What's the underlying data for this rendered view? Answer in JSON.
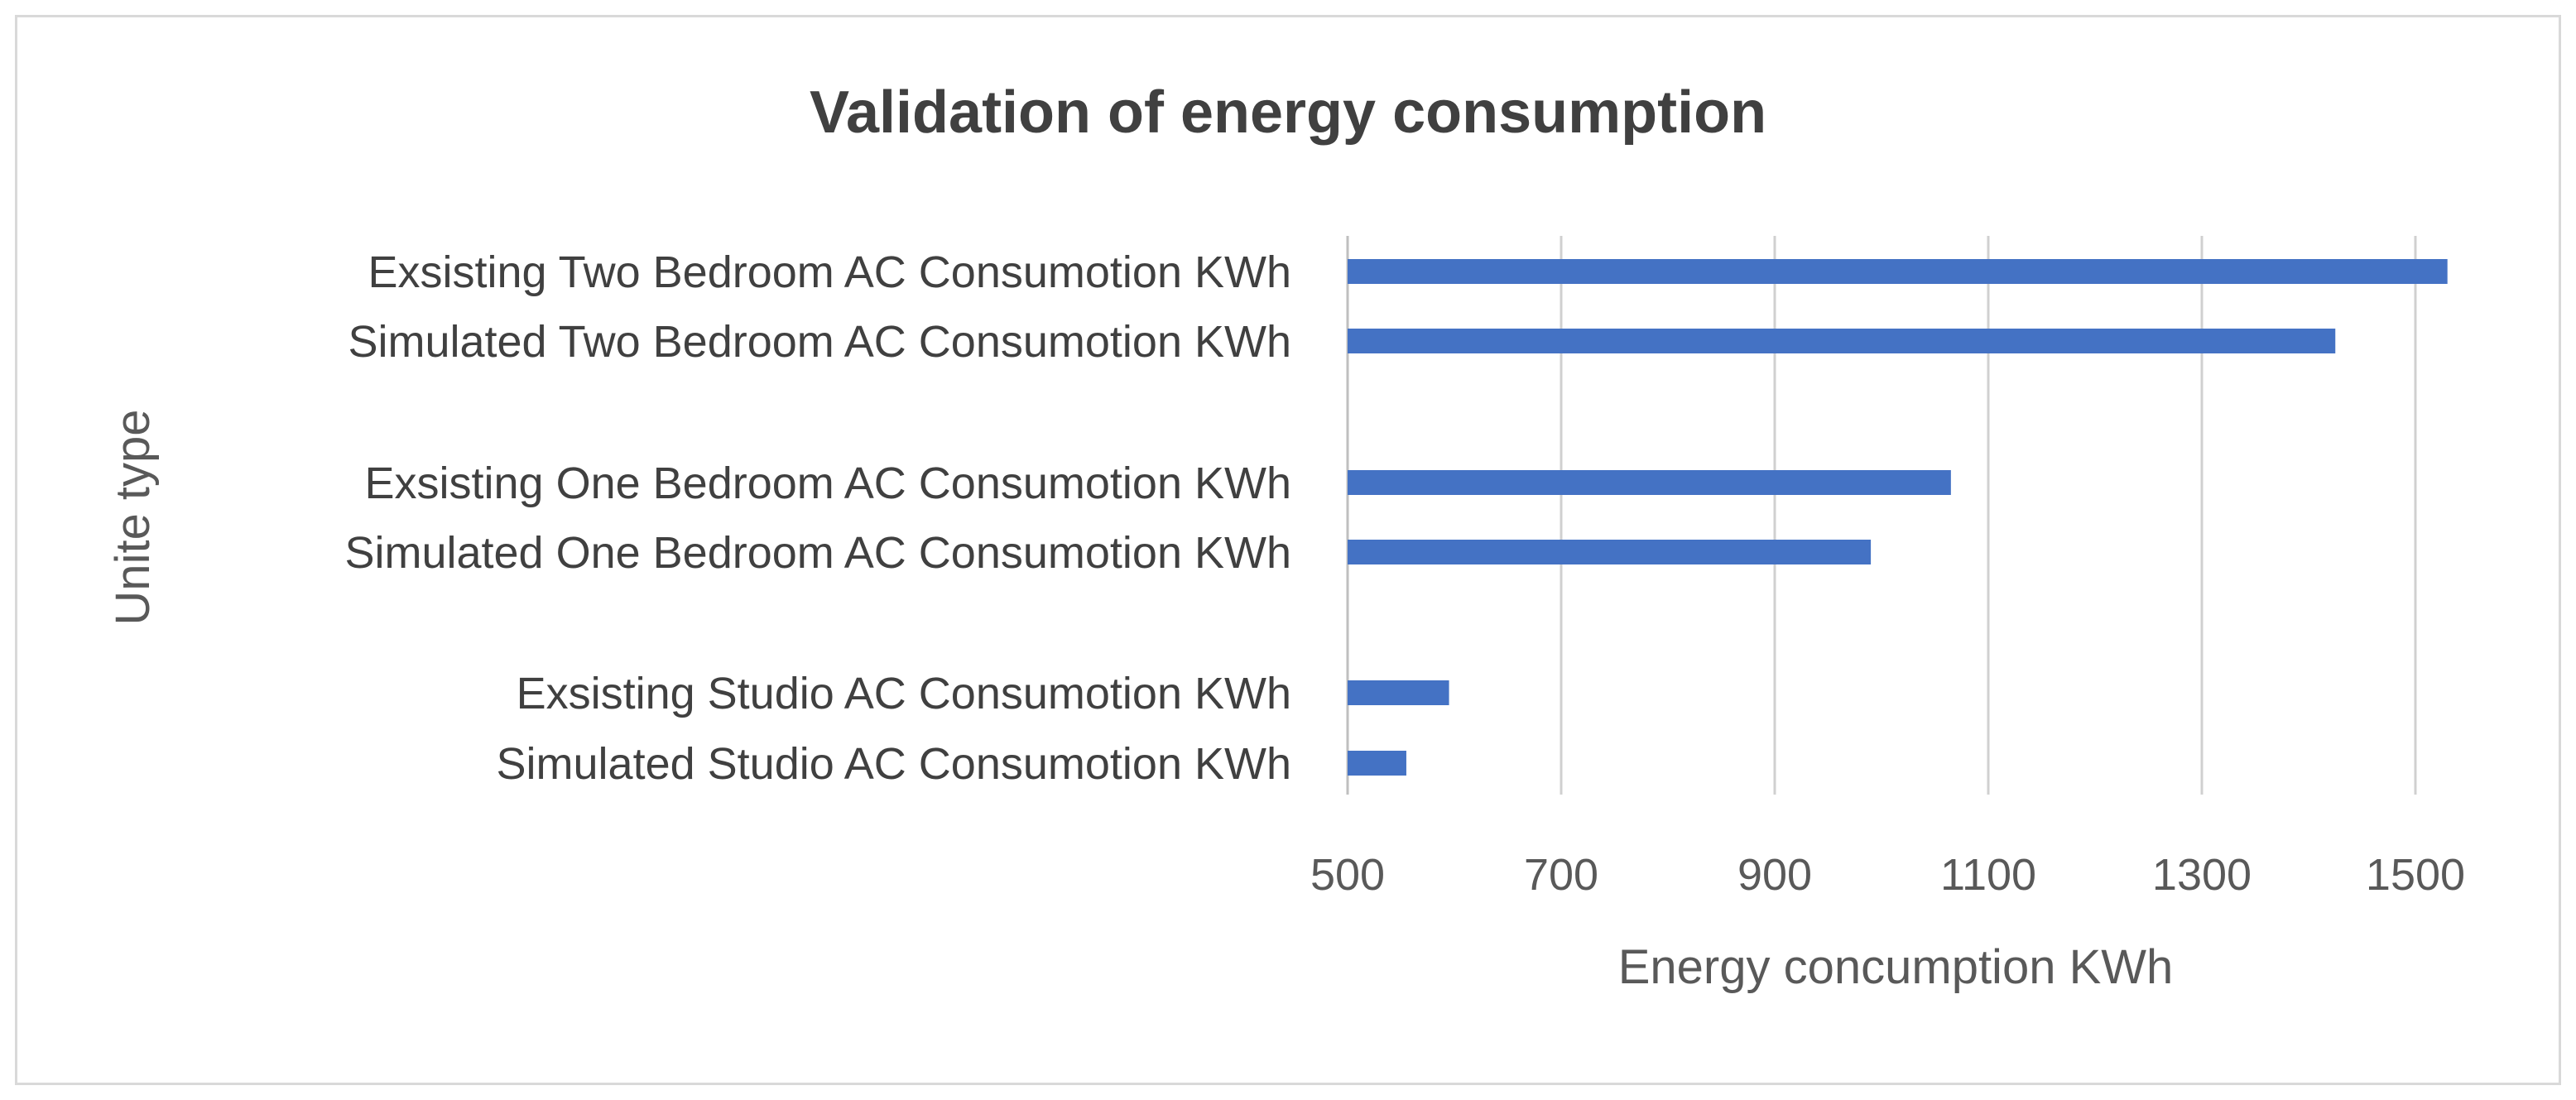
{
  "chart_data": {
    "type": "bar",
    "orientation": "horizontal",
    "title": "Validation of energy consumption",
    "xlabel": "Energy concumption KWh",
    "ylabel": "Unite type",
    "xlim": [
      500,
      1600
    ],
    "xticks": [
      500,
      700,
      900,
      1100,
      1300,
      1500
    ],
    "grid": true,
    "bar_color": "#4472c4",
    "categories": [
      "Exsisting Two Bedroom AC Consumotion KWh",
      "Simulated Two Bedroom AC Consumotion KWh",
      "Exsisting One Bedroom AC Consumotion KWh",
      "Simulated One Bedroom AC Consumotion KWh",
      "Exsisting Studio AC Consumotion KWh",
      "Simulated Studio AC Consumotion KWh"
    ],
    "values": [
      1530,
      1425,
      1065,
      990,
      595,
      555
    ]
  }
}
